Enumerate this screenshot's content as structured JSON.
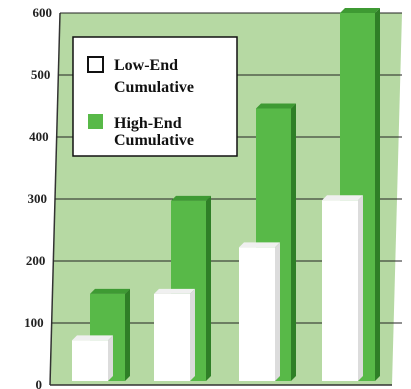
{
  "chart_data": {
    "type": "bar",
    "title": "",
    "xlabel": "",
    "ylabel": "",
    "categories": [
      "",
      "",
      "",
      ""
    ],
    "ylim": [
      0,
      600
    ],
    "yticks": [
      0,
      100,
      200,
      300,
      400,
      500,
      600
    ],
    "grid": true,
    "legend_position": "top-left",
    "series": [
      {
        "name": "Low-End Cumulative",
        "values": [
          72,
          147,
          222,
          298
        ],
        "color": "#ffffff"
      },
      {
        "name": "High-End Cumulative",
        "values": [
          147,
          297,
          446,
          600
        ],
        "color": "#58b948"
      }
    ],
    "background_color": "#b6d9a3"
  },
  "legend": {
    "items": [
      {
        "line1": "Low-End",
        "line2": "Cumulative"
      },
      {
        "line1": "High-End",
        "line2": "Cumulative"
      }
    ]
  }
}
